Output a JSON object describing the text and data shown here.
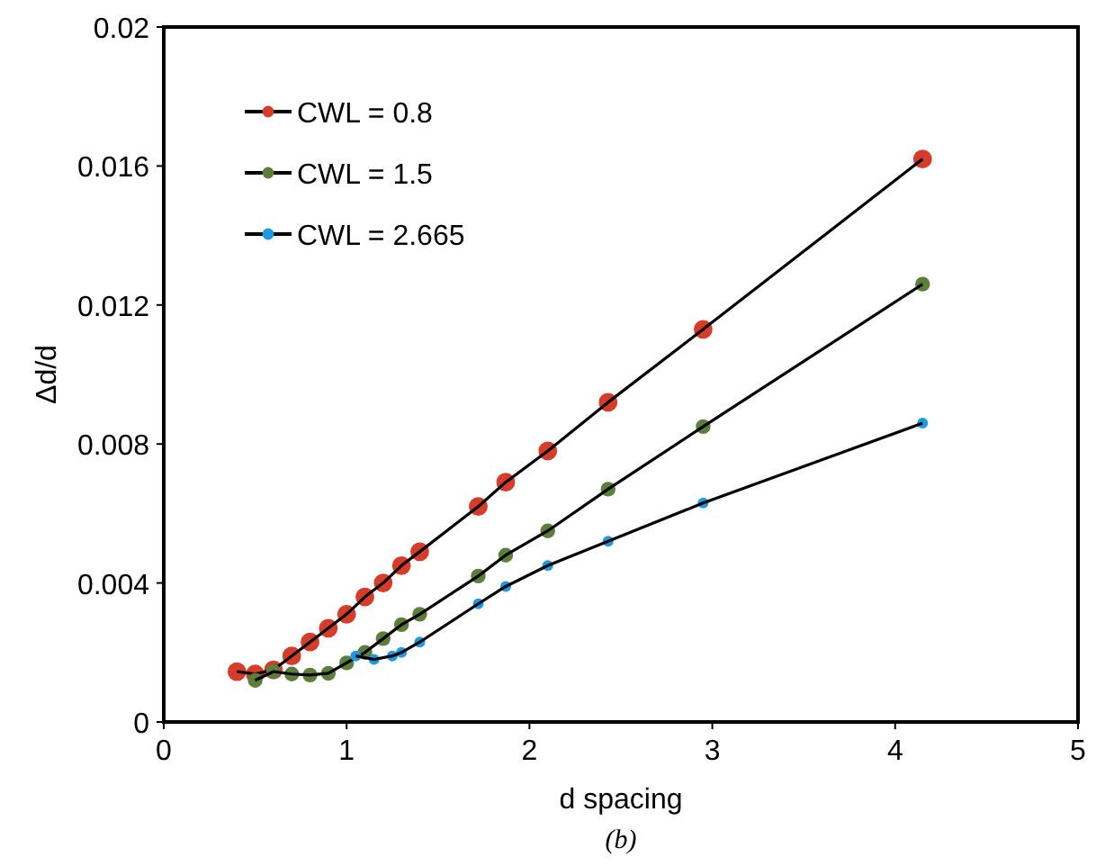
{
  "chart_data": {
    "type": "line",
    "xlabel": "d spacing",
    "ylabel": "Δd/d",
    "annotations": [
      "(b)"
    ],
    "xlim": [
      0,
      5
    ],
    "xticks": [
      0,
      1,
      2,
      3,
      4,
      5
    ],
    "ylim": [
      0,
      0.02
    ],
    "yticks": [
      0,
      0.004,
      0.008,
      0.012,
      0.016,
      0.02
    ],
    "grid": false,
    "legend": "top left",
    "marker": "circle",
    "line_style": "solid",
    "series": [
      {
        "name": "CWL = 0.8",
        "color": "#d63c2a",
        "x": [
          0.4,
          0.5,
          0.6,
          0.7,
          0.8,
          0.9,
          1.0,
          1.1,
          1.2,
          1.3,
          1.4,
          1.72,
          1.87,
          2.1,
          2.43,
          2.95,
          4.15
        ],
        "values": [
          0.00145,
          0.00138,
          0.0015,
          0.0019,
          0.0023,
          0.0027,
          0.0031,
          0.0036,
          0.004,
          0.0045,
          0.0049,
          0.0062,
          0.0069,
          0.0078,
          0.0092,
          0.0113,
          0.0162
        ]
      },
      {
        "name": "CWL = 1.5",
        "color": "#5b7f3a",
        "x": [
          0.5,
          0.6,
          0.7,
          0.8,
          0.9,
          1.0,
          1.1,
          1.2,
          1.3,
          1.4,
          1.72,
          1.87,
          2.1,
          2.43,
          2.95,
          4.15
        ],
        "values": [
          0.0012,
          0.00145,
          0.00138,
          0.00135,
          0.0014,
          0.0017,
          0.002,
          0.0024,
          0.0028,
          0.0031,
          0.0042,
          0.0048,
          0.0055,
          0.0067,
          0.0085,
          0.0126
        ]
      },
      {
        "name": "CWL = 2.665",
        "color": "#1e9be0",
        "x": [
          1.05,
          1.15,
          1.25,
          1.3,
          1.4,
          1.72,
          1.87,
          2.1,
          2.43,
          2.95,
          4.15
        ],
        "values": [
          0.0019,
          0.0018,
          0.0019,
          0.002,
          0.0023,
          0.0034,
          0.0039,
          0.0045,
          0.0052,
          0.0063,
          0.0086
        ]
      }
    ]
  }
}
